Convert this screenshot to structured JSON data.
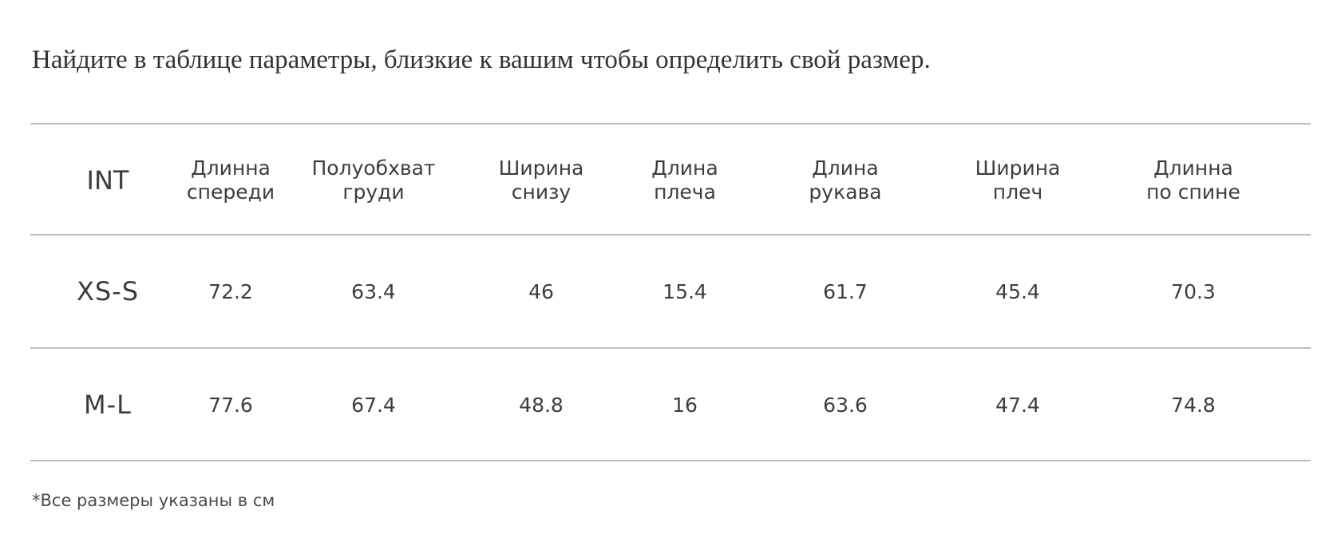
{
  "title": "Найдите в таблице параметры, близкие к вашим чтобы определить свой размер.",
  "table": {
    "headers": [
      {
        "line1": "INT",
        "line2": ""
      },
      {
        "line1": "Длинна",
        "line2": "спереди"
      },
      {
        "line1": "Полуобхват",
        "line2": "груди"
      },
      {
        "line1": "Ширина",
        "line2": "снизу"
      },
      {
        "line1": "Длина",
        "line2": "плеча"
      },
      {
        "line1": "Длина",
        "line2": "рукава"
      },
      {
        "line1": "Ширина",
        "line2": "плеч"
      },
      {
        "line1": "Длинна",
        "line2": "по спине"
      }
    ],
    "rows": [
      {
        "size": "XS-S",
        "values": [
          "72.2",
          "63.4",
          "46",
          "15.4",
          "61.7",
          "45.4",
          "70.3"
        ]
      },
      {
        "size": "M-L",
        "values": [
          "77.6",
          "67.4",
          "48.8",
          "16",
          "63.6",
          "47.4",
          "74.8"
        ]
      }
    ]
  },
  "note": "*Все размеры указаны в см"
}
